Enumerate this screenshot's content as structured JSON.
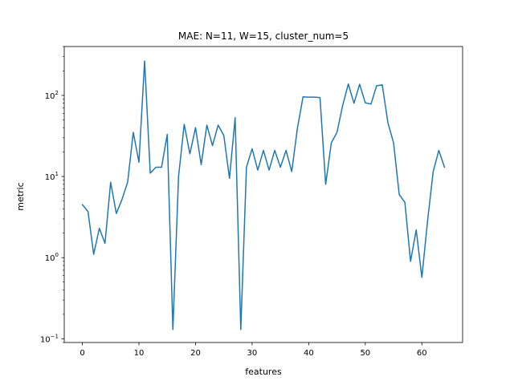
{
  "chart_data": {
    "type": "line",
    "title": "MAE: N=11, W=15, cluster_num=5",
    "xlabel": "features",
    "ylabel": "metric",
    "xlim": [
      -3.2,
      67.2
    ],
    "ylim": [
      0.09,
      400
    ],
    "yscale": "log",
    "grid": false,
    "x_ticks": [
      0,
      10,
      20,
      30,
      40,
      50,
      60
    ],
    "y_ticks": [
      0.1,
      1,
      10,
      100
    ],
    "y_tick_labels": [
      {
        "base": "10",
        "exp": "−1"
      },
      {
        "base": "10",
        "exp": "0"
      },
      {
        "base": "10",
        "exp": "1"
      },
      {
        "base": "10",
        "exp": "2"
      }
    ],
    "line_color": "#1f77b4",
    "series": [
      {
        "x": [
          0,
          1,
          2,
          3,
          4,
          5,
          6,
          7,
          8,
          9,
          10,
          11,
          12,
          13,
          14,
          15,
          16,
          17,
          18,
          19,
          20,
          21,
          22,
          23,
          24,
          25,
          26,
          27,
          28,
          29,
          30,
          31,
          32,
          33,
          34,
          35,
          36,
          37,
          38,
          39,
          40,
          41,
          42,
          43,
          44,
          45,
          46,
          47,
          48,
          49,
          50,
          51,
          52,
          53,
          54,
          55,
          56,
          57,
          58,
          59,
          60,
          61,
          62,
          63,
          64
        ],
        "values": [
          4.5,
          3.7,
          1.1,
          2.3,
          1.5,
          8.5,
          3.5,
          5.2,
          8.5,
          35,
          15,
          265,
          11,
          13,
          13,
          33,
          0.13,
          10,
          44,
          19,
          40,
          14,
          43,
          24,
          43,
          32,
          9.5,
          53,
          0.13,
          13,
          22,
          12,
          21,
          12,
          21,
          13,
          21,
          11.5,
          39,
          96,
          95,
          95,
          94,
          8,
          26,
          35,
          75,
          138,
          80,
          137,
          81,
          78,
          131,
          135,
          46,
          26,
          6,
          4.8,
          0.9,
          2.2,
          0.57,
          2.8,
          11.5,
          21,
          13
        ]
      }
    ]
  }
}
